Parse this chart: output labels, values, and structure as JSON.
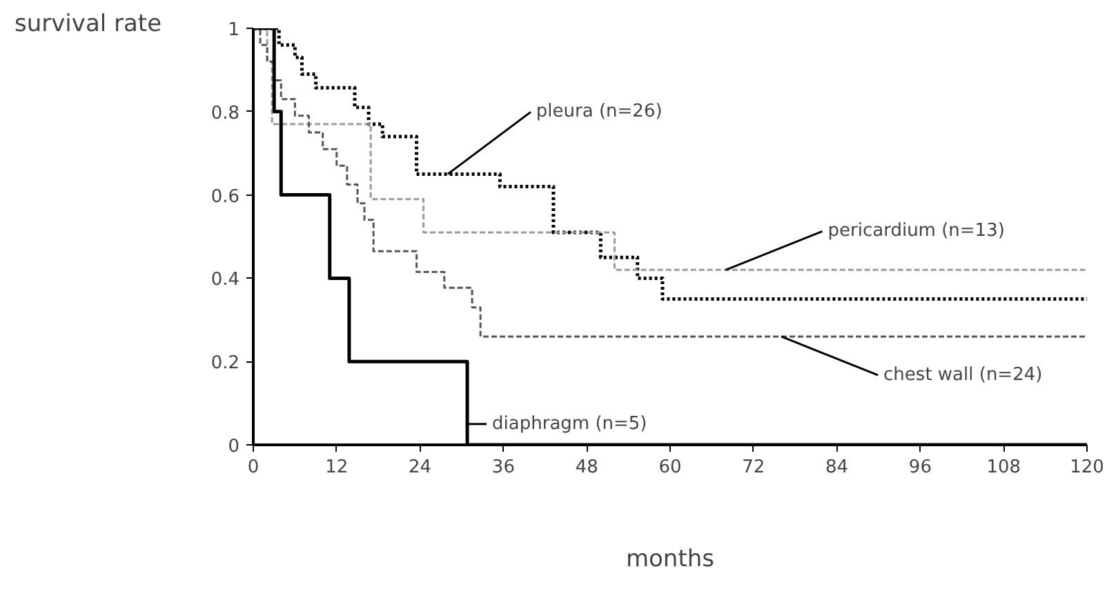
{
  "chart_data": {
    "type": "step",
    "ylabel": "survival rate",
    "xlabel": "months",
    "xlim": [
      0,
      120
    ],
    "ylim": [
      0,
      1
    ],
    "xticks": [
      0,
      12,
      24,
      36,
      48,
      60,
      72,
      84,
      96,
      108,
      120
    ],
    "yticks": [
      0,
      0.2,
      0.4,
      0.6,
      0.8,
      1
    ],
    "grid": false,
    "marker": "none",
    "series": [
      {
        "color": "#000000",
        "line_style": "dotted",
        "x": [
          0,
          3.7,
          6,
          7,
          9,
          14.6,
          16.6,
          18.6,
          23.5,
          35.5,
          43.2,
          50,
          55.3,
          58.9,
          120
        ],
        "values": [
          1,
          0.96,
          0.93,
          0.89,
          0.857,
          0.81,
          0.77,
          0.74,
          0.65,
          0.62,
          0.51,
          0.45,
          0.4,
          0.35,
          0.35
        ]
      },
      {
        "color": "#9a9a9a",
        "line_style": "dashed",
        "x": [
          0,
          2,
          2.7,
          16.9,
          24.5,
          52,
          120
        ],
        "values": [
          1,
          0.92,
          0.77,
          0.59,
          0.51,
          0.42,
          0.42
        ]
      },
      {
        "color": "#555555",
        "line_style": "dashed",
        "x": [
          0,
          1,
          2,
          3,
          4,
          6,
          8,
          10,
          12,
          13.5,
          15,
          16,
          17.3,
          23.5,
          27.5,
          31.5,
          32.7,
          120
        ],
        "values": [
          1,
          0.96,
          0.92,
          0.875,
          0.83,
          0.79,
          0.75,
          0.71,
          0.67,
          0.625,
          0.58,
          0.54,
          0.465,
          0.415,
          0.377,
          0.33,
          0.26,
          0.26
        ]
      },
      {
        "color": "#000000",
        "line_style": "solid",
        "x": [
          0,
          3,
          4,
          11,
          13.8,
          30.8,
          120
        ],
        "values": [
          1,
          0.8,
          0.6,
          0.4,
          0.2,
          0,
          0
        ]
      }
    ],
    "annotations": [
      {
        "text": "pleura (n=26)",
        "x": 28,
        "y": 0.65
      },
      {
        "text": "pericardium (n=13)",
        "x": 68,
        "y": 0.42
      },
      {
        "text": "chest wall (n=24)",
        "x": 76,
        "y": 0.26
      },
      {
        "text": "diaphragm (n=5)",
        "x": 30.8,
        "y": 0.05
      }
    ]
  }
}
